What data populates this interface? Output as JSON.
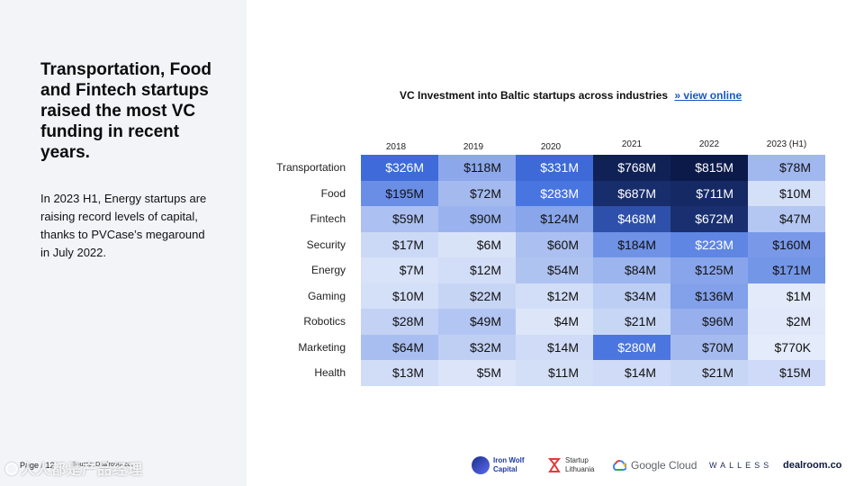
{
  "headline": "Transportation, Food and Fintech startups raised the most VC funding in recent years.",
  "body": "In 2023 H1, Energy startups are raising record levels of capital, thanks to PVCase’s megaround in July 2022.",
  "footer": {
    "page": "Page / 12",
    "source": "Source: Dealroom.co."
  },
  "watermark": "人人都是产品经理",
  "chart_title": "VC Investment into Baltic startups across industries",
  "chart_link": "» view online",
  "chart_data": {
    "type": "heatmap",
    "title": "VC Investment into Baltic startups across industries",
    "x": [
      "2018",
      "2019",
      "2020",
      "2021",
      "2022",
      "2023 (H1)"
    ],
    "y": [
      "Transportation",
      "Food",
      "Fintech",
      "Security",
      "Energy",
      "Gaming",
      "Robotics",
      "Marketing",
      "Health"
    ],
    "unit": "USD millions",
    "values": [
      [
        326,
        118,
        331,
        768,
        815,
        78
      ],
      [
        195,
        72,
        283,
        687,
        711,
        10
      ],
      [
        59,
        90,
        124,
        468,
        672,
        47
      ],
      [
        17,
        6,
        60,
        184,
        223,
        160
      ],
      [
        7,
        12,
        54,
        84,
        125,
        171
      ],
      [
        10,
        22,
        12,
        34,
        136,
        1
      ],
      [
        28,
        49,
        4,
        21,
        96,
        2
      ],
      [
        64,
        32,
        14,
        280,
        70,
        0.77
      ],
      [
        13,
        5,
        11,
        14,
        21,
        15
      ]
    ],
    "labels": [
      [
        "$326M",
        "$118M",
        "$331M",
        "$768M",
        "$815M",
        "$78M"
      ],
      [
        "$195M",
        "$72M",
        "$283M",
        "$687M",
        "$711M",
        "$10M"
      ],
      [
        "$59M",
        "$90M",
        "$124M",
        "$468M",
        "$672M",
        "$47M"
      ],
      [
        "$17M",
        "$6M",
        "$60M",
        "$184M",
        "$223M",
        "$160M"
      ],
      [
        "$7M",
        "$12M",
        "$54M",
        "$84M",
        "$125M",
        "$171M"
      ],
      [
        "$10M",
        "$22M",
        "$12M",
        "$34M",
        "$136M",
        "$1M"
      ],
      [
        "$28M",
        "$49M",
        "$4M",
        "$21M",
        "$96M",
        "$2M"
      ],
      [
        "$64M",
        "$32M",
        "$14M",
        "$280M",
        "$70M",
        "$770K"
      ],
      [
        "$13M",
        "$5M",
        "$11M",
        "$14M",
        "$21M",
        "$15M"
      ]
    ],
    "colors": {
      "low": "#e8eefb",
      "high": "#0c1a4a"
    }
  },
  "logos": [
    {
      "name": "Iron Wolf Capital",
      "line1": "Iron Wolf",
      "line2": "Capital"
    },
    {
      "name": "Startup Lithuania",
      "line1": "Startup",
      "line2": "Lithuania"
    },
    {
      "name": "Google Cloud",
      "text": "Google Cloud"
    },
    {
      "name": "Walless",
      "text": "WALLESS"
    },
    {
      "name": "dealroom.co",
      "text": "dealroom.co"
    }
  ]
}
